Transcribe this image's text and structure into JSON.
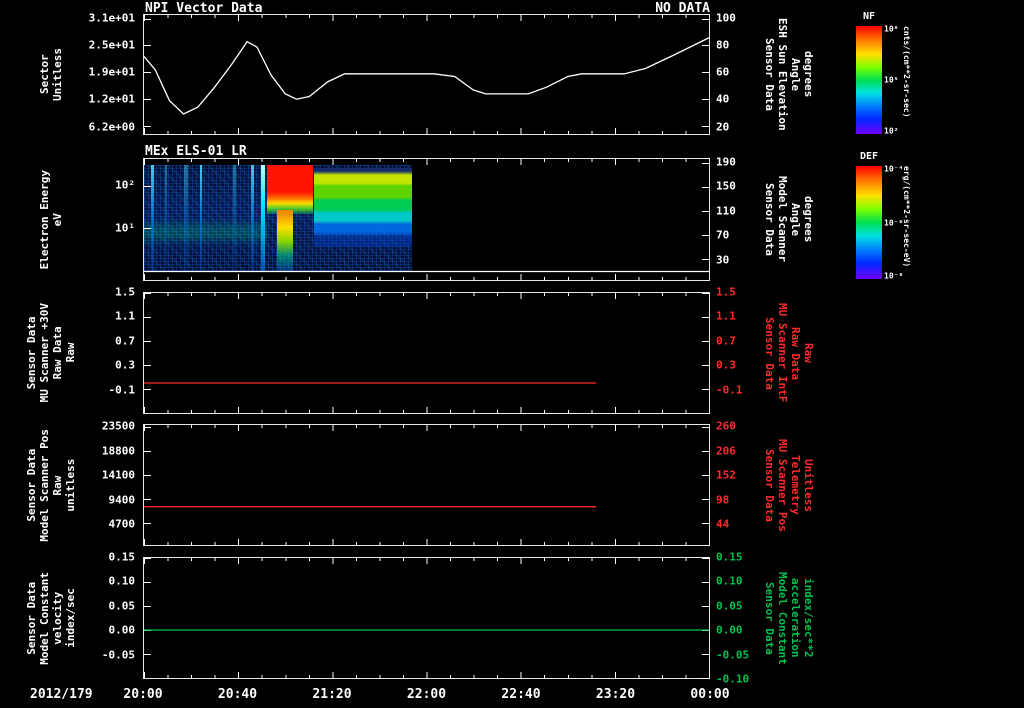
{
  "screen": {
    "background": "#000000"
  },
  "titles": {
    "main": "NPI Vector Data",
    "no_data": "NO DATA",
    "panel2": "MEx ELS-01 LR"
  },
  "xaxis": {
    "date_label": "2012/179",
    "ticks": [
      "20:00",
      "20:40",
      "21:20",
      "22:00",
      "22:40",
      "23:20",
      "00:00"
    ]
  },
  "colors": {
    "axis": "#ffffff",
    "red_series": "#ff2a2a",
    "green_series": "#00c050"
  },
  "colorbars": [
    {
      "name": "NF",
      "units": "cnts/(cm**2-sr-sec)",
      "ticks": [
        "10⁸",
        "10⁵",
        "10²"
      ]
    },
    {
      "name": "DEF",
      "units": "erg/(cm**2-sr-sec-eV)",
      "ticks": [
        "10⁻⁴",
        "10⁻⁶",
        "10⁻⁸"
      ]
    }
  ],
  "chart_data": [
    {
      "type": "line",
      "panel": "npi-sector",
      "title": "NPI Vector Data",
      "annotation": "NO DATA",
      "ylabel_left": [
        "Sector",
        "Unitless"
      ],
      "yticks_left": [
        "3.1e+01",
        "2.5e+01",
        "1.9e+01",
        "1.2e+01",
        "6.2e+00"
      ],
      "ylabel_right": [
        "Sensor Data",
        "ESH Sun Elevation",
        "Angle",
        "degrees"
      ],
      "yticks_right": [
        "100",
        "80",
        "60",
        "40",
        "20"
      ],
      "series_label": "ESH Sun Elevation Angle (degrees, right axis)",
      "xlim": [
        20,
        24
      ],
      "ylim": [
        14,
        103
      ],
      "x": [
        20.0,
        20.08,
        20.18,
        20.28,
        20.38,
        20.5,
        20.62,
        20.73,
        20.8,
        20.9,
        21.0,
        21.08,
        21.17,
        21.3,
        21.42,
        22.05,
        22.2,
        22.33,
        22.42,
        22.72,
        22.85,
        23.0,
        23.1,
        23.4,
        23.55,
        23.75,
        24.0
      ],
      "y": [
        72,
        62,
        39,
        29,
        34,
        49,
        66,
        83,
        79,
        58,
        44,
        40,
        42,
        53,
        59,
        59,
        57,
        47,
        44,
        44,
        49,
        57,
        59,
        59,
        63,
        73,
        86
      ],
      "line_color": "#ffffff"
    },
    {
      "type": "spectrogram",
      "panel": "els-energy",
      "title": "MEx ELS-01 LR",
      "ylabel_left": [
        "Electron Energy",
        "eV"
      ],
      "yticks_left": [
        "10²",
        "10¹"
      ],
      "ylabel_right": [
        "Sensor Data",
        "Model Scanner",
        "Angle",
        "degrees"
      ],
      "yticks_right": [
        "190",
        "150",
        "110",
        "70",
        "30"
      ],
      "colorbar": "DEF",
      "note": "Electron energy spectrogram; colored data from 20:00 to ~21:55, black (no data) afterwards; intense red burst near 20:55-21:10",
      "overlay_line": {
        "label": "Model Scanner Angle",
        "x": [
          20,
          24
        ],
        "y": [
          23,
          23
        ],
        "xlim": [
          20,
          24
        ],
        "ylim": [
          10,
          195
        ],
        "color": "#ffffff"
      }
    },
    {
      "type": "line",
      "panel": "mu-scanner-30v",
      "ylabel_left": [
        "Sensor Data",
        "MU Scanner +30V",
        "Raw Data",
        "Raw"
      ],
      "yticks_left": [
        "1.5",
        "1.1",
        "0.7",
        "0.3",
        "-0.1"
      ],
      "ylabel_right": [
        "Sensor Data",
        "MU Scanner IntF",
        "Raw Data",
        "Raw"
      ],
      "yticks_right": [
        "1.5",
        "1.1",
        "0.7",
        "0.3",
        "-0.1"
      ],
      "xlim": [
        20,
        24
      ],
      "ylim": [
        -0.5,
        1.5
      ],
      "x": [
        20,
        23.2
      ],
      "y": [
        0,
        0
      ],
      "line_color": "#ff2a2a"
    },
    {
      "type": "line",
      "panel": "model-scanner-pos",
      "ylabel_left": [
        "Sensor Data",
        "Model Scanner Pos",
        "Raw",
        "unitless"
      ],
      "yticks_left": [
        "23500",
        "18800",
        "14100",
        "9400",
        "4700"
      ],
      "ylabel_right": [
        "Sensor Data",
        "MU Scanner Pos",
        "Telemetry",
        "Unitless"
      ],
      "yticks_right": [
        "260",
        "206",
        "152",
        "98",
        "44"
      ],
      "xlim": [
        20,
        24
      ],
      "ylim": [
        0,
        23500
      ],
      "x": [
        20,
        23.2
      ],
      "y": [
        7500,
        7500
      ],
      "line_color": "#ff2a2a"
    },
    {
      "type": "line",
      "panel": "model-constant",
      "ylabel_left": [
        "Sensor Data",
        "Model Constant",
        "velocity",
        "index/sec"
      ],
      "yticks_left": [
        "0.15",
        "0.10",
        "0.05",
        "0.00",
        "-0.05"
      ],
      "ylabel_right": [
        "Sensor Data",
        "Model Constant",
        "acceleration",
        "index/sec**2"
      ],
      "yticks_right": [
        "0.15",
        "0.10",
        "0.05",
        "0.00",
        "-0.05",
        "-0.10"
      ],
      "xlim": [
        20,
        24
      ],
      "ylim": [
        -0.1,
        0.15
      ],
      "x": [
        20,
        24
      ],
      "y": [
        0,
        0
      ],
      "line_color": "#00c050"
    }
  ]
}
